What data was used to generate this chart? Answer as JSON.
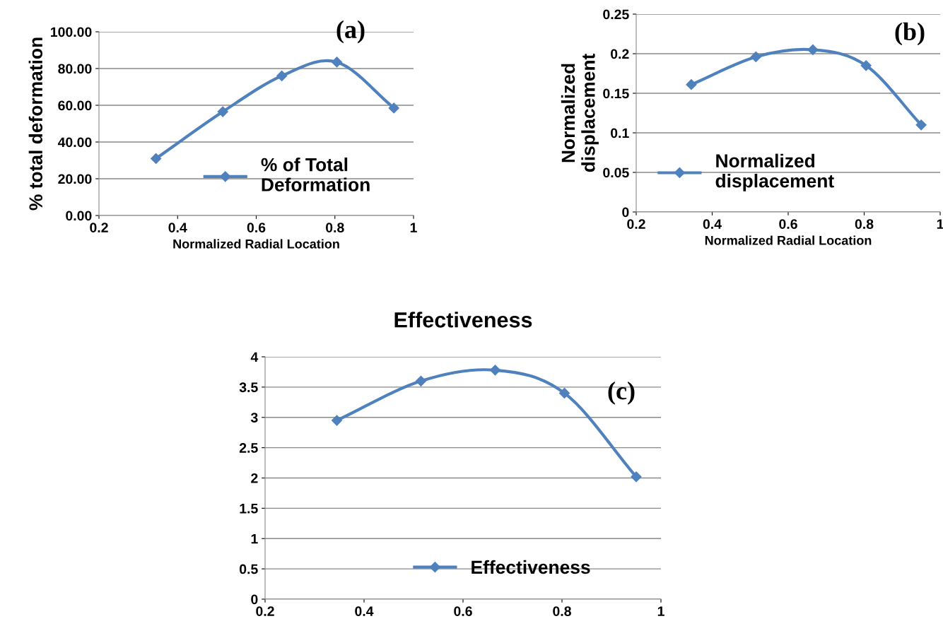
{
  "chart_data": [
    {
      "type": "line",
      "xlabel": "Normalized Radial Location",
      "ylabel": "% total deformation",
      "annotations": [
        "(a)"
      ],
      "x": [
        0.345,
        0.515,
        0.665,
        0.805,
        0.95
      ],
      "series": [
        {
          "name": "% of Total\nDeformation",
          "color": "#4f81bd",
          "values": [
            31.0,
            56.5,
            76.0,
            83.5,
            58.5
          ]
        }
      ],
      "xlim": [
        0.2,
        1
      ],
      "xticks": [
        0.2,
        0.4,
        0.6,
        0.8,
        1
      ],
      "ylim": [
        0,
        100
      ],
      "yticks": [
        {
          "value": 0,
          "label": "0.00"
        },
        {
          "value": 20,
          "label": "20.00"
        },
        {
          "value": 40,
          "label": "40.00"
        },
        {
          "value": 60,
          "label": "60.00"
        },
        {
          "value": 80,
          "label": "80.00"
        },
        {
          "value": 100,
          "label": "100.00"
        }
      ],
      "grid": "y",
      "legend": "bottom",
      "marker": "diamond",
      "line_style": "solid"
    },
    {
      "type": "line",
      "xlabel": "Normalized Radial Location",
      "ylabel": "Normalized\ndisplacement",
      "annotations": [
        "(b)"
      ],
      "x": [
        0.345,
        0.515,
        0.665,
        0.805,
        0.95
      ],
      "series": [
        {
          "name": "Normalized\ndisplacement",
          "color": "#4f81bd",
          "values": [
            0.161,
            0.196,
            0.205,
            0.185,
            0.11
          ]
        }
      ],
      "xlim": [
        0.2,
        1
      ],
      "xticks": [
        0.2,
        0.4,
        0.6,
        0.8,
        1
      ],
      "ylim": [
        0,
        0.25
      ],
      "yticks": [
        0,
        0.05,
        0.1,
        0.15,
        0.2,
        0.25
      ],
      "grid": "y",
      "legend": "bottom left",
      "marker": "diamond",
      "line_style": "solid"
    },
    {
      "type": "line",
      "title": "Effectiveness",
      "annotations": [
        "(c)"
      ],
      "x": [
        0.345,
        0.515,
        0.665,
        0.805,
        0.95
      ],
      "series": [
        {
          "name": "Effectiveness",
          "color": "#4f81bd",
          "values": [
            2.95,
            3.6,
            3.78,
            3.4,
            2.02
          ]
        }
      ],
      "xlim": [
        0.2,
        1
      ],
      "xticks": [
        0.2,
        0.4,
        0.6,
        0.8,
        1
      ],
      "ylim": [
        0,
        4
      ],
      "yticks": [
        0,
        0.5,
        1,
        1.5,
        2,
        2.5,
        3,
        3.5,
        4
      ],
      "grid": "y",
      "legend": "bottom",
      "marker": "diamond",
      "line_style": "solid"
    }
  ]
}
